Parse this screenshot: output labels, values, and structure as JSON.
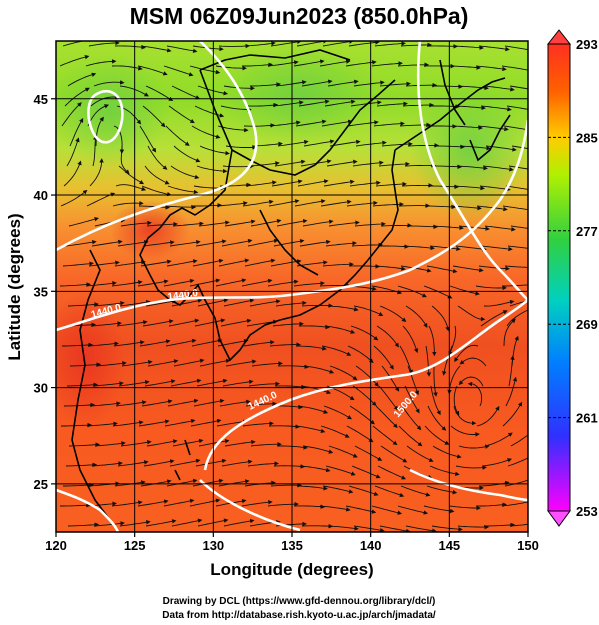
{
  "title": "MSM 06Z09Jun2023 (850.0hPa)",
  "map": {
    "lon_range": [
      120,
      150
    ],
    "lat_range": [
      22.5,
      48
    ],
    "xlabel": "Longitude (degrees)",
    "ylabel": "Latitude  (degrees)",
    "x_ticks": [
      120,
      125,
      130,
      135,
      140,
      145,
      150
    ],
    "y_ticks": [
      25,
      30,
      35,
      40,
      45
    ],
    "grid": true,
    "field": "temperature",
    "overlay": [
      "streamlines",
      "coastlines",
      "height contours"
    ]
  },
  "colorbar": {
    "range": [
      253,
      293
    ],
    "tick_labels": [
      "293",
      "285",
      "277",
      "269",
      "261",
      "253"
    ],
    "tick_values": [
      293,
      285,
      277,
      269,
      261,
      253
    ],
    "colors": [
      "#ff00ff",
      "#3030ff",
      "#00c8ff",
      "#00e070",
      "#b0f000",
      "#ffcc00",
      "#ff6000",
      "#ff3020"
    ]
  },
  "contours": {
    "labels": [
      "1440.0",
      "1440.0",
      "1440.0",
      "1500.0"
    ]
  },
  "credits": {
    "line1": "Drawing by DCL (https://www.gfd-dennou.org/library/dcl/)",
    "line2": "Data from http://database.rish.kyoto-u.ac.jp/arch/jmadata/"
  }
}
